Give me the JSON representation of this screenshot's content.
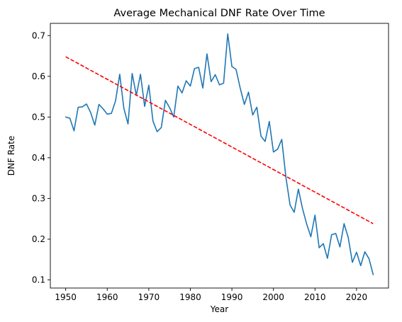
{
  "chart_data": {
    "type": "line",
    "title": "Average Mechanical DNF Rate Over Time",
    "xlabel": "Year",
    "ylabel": "DNF Rate",
    "xlim": [
      1946.3,
      2027.7
    ],
    "ylim": [
      0.08,
      0.73
    ],
    "xticks": [
      1950,
      1960,
      1970,
      1980,
      1990,
      2000,
      2010,
      2020
    ],
    "yticks": [
      0.1,
      0.2,
      0.3,
      0.4,
      0.5,
      0.6,
      0.7
    ],
    "grid": false,
    "colors": {
      "series": "#1f77b4",
      "trend": "#ff0000"
    },
    "series": [
      {
        "x": [
          1950,
          1951,
          1952,
          1953,
          1954,
          1955,
          1956,
          1957,
          1958,
          1959,
          1960,
          1961,
          1962,
          1963,
          1964,
          1965,
          1966,
          1967,
          1968,
          1969,
          1970,
          1971,
          1972,
          1973,
          1974,
          1975,
          1976,
          1977,
          1978,
          1979,
          1980,
          1981,
          1982,
          1983,
          1984,
          1985,
          1986,
          1987,
          1988,
          1989,
          1990,
          1991,
          1992,
          1993,
          1994,
          1995,
          1996,
          1997,
          1998,
          1999,
          2000,
          2001,
          2002,
          2003,
          2004,
          2005,
          2006,
          2007,
          2008,
          2009,
          2010,
          2011,
          2012,
          2013,
          2014,
          2015,
          2016,
          2017,
          2018,
          2019,
          2020,
          2021,
          2022,
          2023,
          2024
        ],
        "values": [
          0.5,
          0.497,
          0.466,
          0.524,
          0.525,
          0.532,
          0.511,
          0.48,
          0.531,
          0.52,
          0.507,
          0.509,
          0.54,
          0.605,
          0.521,
          0.483,
          0.607,
          0.553,
          0.605,
          0.526,
          0.578,
          0.49,
          0.464,
          0.474,
          0.541,
          0.523,
          0.5,
          0.576,
          0.559,
          0.589,
          0.576,
          0.619,
          0.622,
          0.571,
          0.655,
          0.587,
          0.604,
          0.579,
          0.583,
          0.704,
          0.624,
          0.617,
          0.571,
          0.531,
          0.561,
          0.505,
          0.524,
          0.453,
          0.44,
          0.489,
          0.414,
          0.421,
          0.445,
          0.352,
          0.284,
          0.266,
          0.323,
          0.275,
          0.237,
          0.206,
          0.259,
          0.179,
          0.189,
          0.153,
          0.211,
          0.214,
          0.181,
          0.238,
          0.204,
          0.143,
          0.168,
          0.135,
          0.169,
          0.152,
          0.113
        ]
      }
    ],
    "trendline": {
      "x": [
        1950,
        2024
      ],
      "values": [
        0.648,
        0.238
      ]
    }
  }
}
